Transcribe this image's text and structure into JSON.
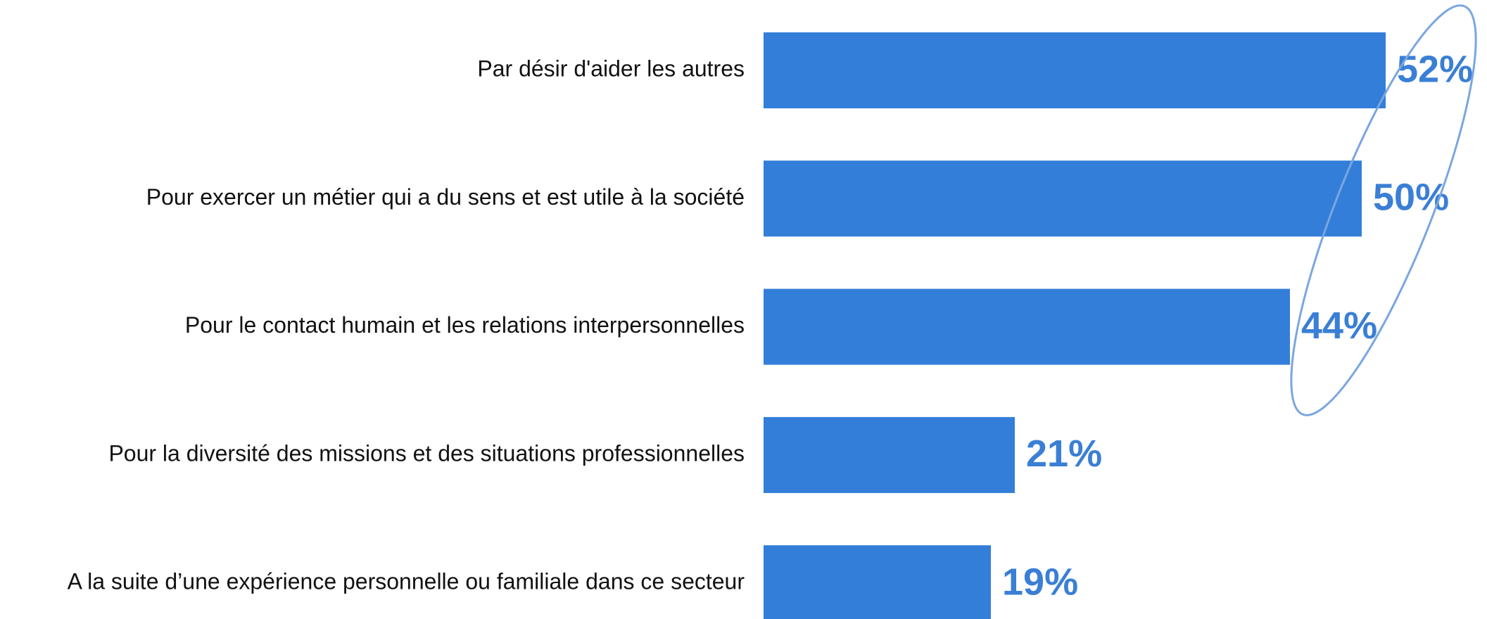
{
  "chart_data": {
    "type": "bar",
    "orientation": "horizontal",
    "categories": [
      "Par désir d'aider les autres",
      "Pour exercer un métier qui a du sens et est utile à la société",
      "Pour le contact humain et les relations interpersonnelles",
      "Pour la diversité des missions et des situations professionnelles",
      "A la suite d’une expérience personnelle ou familiale dans ce secteur"
    ],
    "values": [
      52,
      50,
      44,
      21,
      19
    ],
    "value_labels": [
      "52%",
      "50%",
      "44%",
      "21%",
      "19%"
    ],
    "color": "#337ed9"
  }
}
